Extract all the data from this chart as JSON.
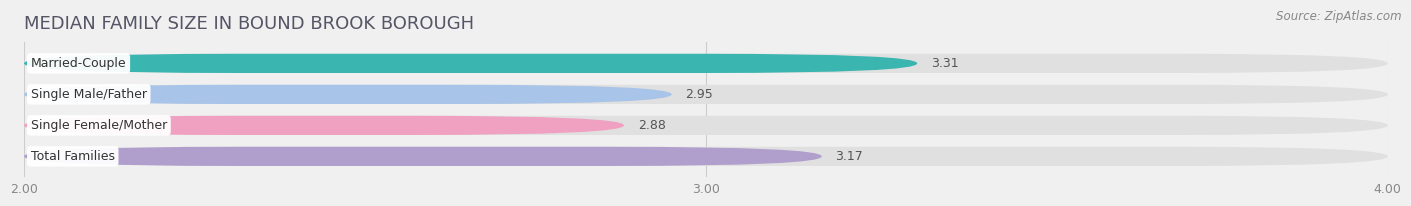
{
  "title": "MEDIAN FAMILY SIZE IN BOUND BROOK BOROUGH",
  "source": "Source: ZipAtlas.com",
  "categories": [
    "Married-Couple",
    "Single Male/Father",
    "Single Female/Mother",
    "Total Families"
  ],
  "values": [
    3.31,
    2.95,
    2.88,
    3.17
  ],
  "bar_colors": [
    "#3ab5b0",
    "#a8c4e8",
    "#f0a0c0",
    "#b09fcc"
  ],
  "value_labels": [
    "3.31",
    "2.95",
    "2.88",
    "3.17"
  ],
  "xlim": [
    2.0,
    4.0
  ],
  "xticks": [
    2.0,
    3.0,
    4.0
  ],
  "xtick_labels": [
    "2.00",
    "3.00",
    "4.00"
  ],
  "bg_color": "#f0f0f0",
  "bar_bg_color": "#e0e0e0",
  "title_fontsize": 13,
  "label_fontsize": 9,
  "value_fontsize": 9,
  "source_fontsize": 8.5
}
